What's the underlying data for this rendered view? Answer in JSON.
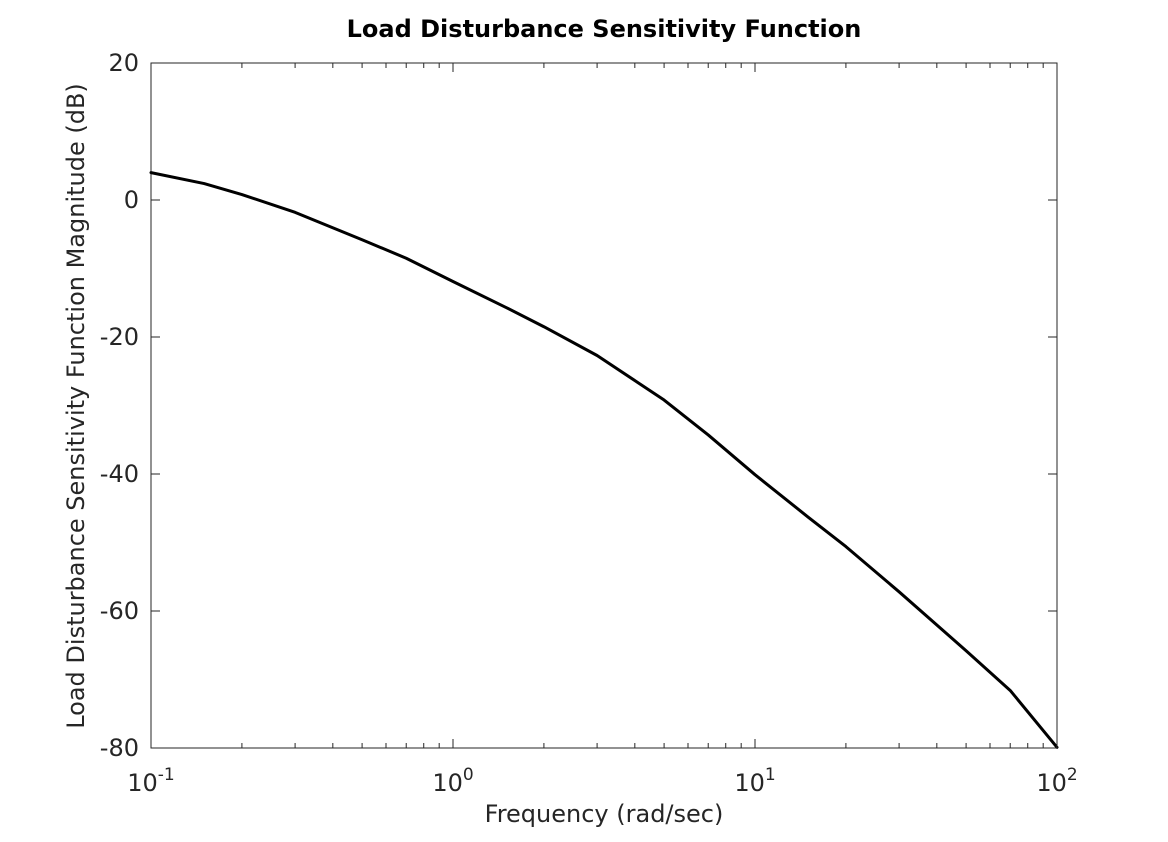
{
  "chart_data": {
    "type": "line",
    "title": "Load Disturbance Sensitivity Function",
    "xlabel": "Frequency (rad/sec)",
    "ylabel": "Load Disturbance Sensitivity Function Magnitude (dB)",
    "xscale": "log",
    "xlim": [
      0.1,
      100
    ],
    "ylim": [
      -80,
      20
    ],
    "grid": false,
    "x_ticks": [
      {
        "value": 0.1,
        "base": "10",
        "exp": "-1"
      },
      {
        "value": 1,
        "base": "10",
        "exp": "0"
      },
      {
        "value": 10,
        "base": "10",
        "exp": "1"
      },
      {
        "value": 100,
        "base": "10",
        "exp": "2"
      }
    ],
    "y_ticks": [
      20,
      0,
      -20,
      -40,
      -60,
      -80
    ],
    "series": [
      {
        "color": "#000000",
        "x": [
          0.1,
          0.15,
          0.2,
          0.3,
          0.5,
          0.7,
          1,
          1.5,
          2,
          3,
          5,
          7,
          10,
          15,
          20,
          30,
          50,
          70,
          100
        ],
        "y": [
          4.0,
          2.4,
          0.8,
          -1.8,
          -5.8,
          -8.5,
          -11.9,
          -15.7,
          -18.5,
          -22.7,
          -29.2,
          -34.3,
          -40.1,
          -46.3,
          -50.6,
          -57.2,
          -65.8,
          -71.6,
          -79.9
        ]
      }
    ]
  }
}
